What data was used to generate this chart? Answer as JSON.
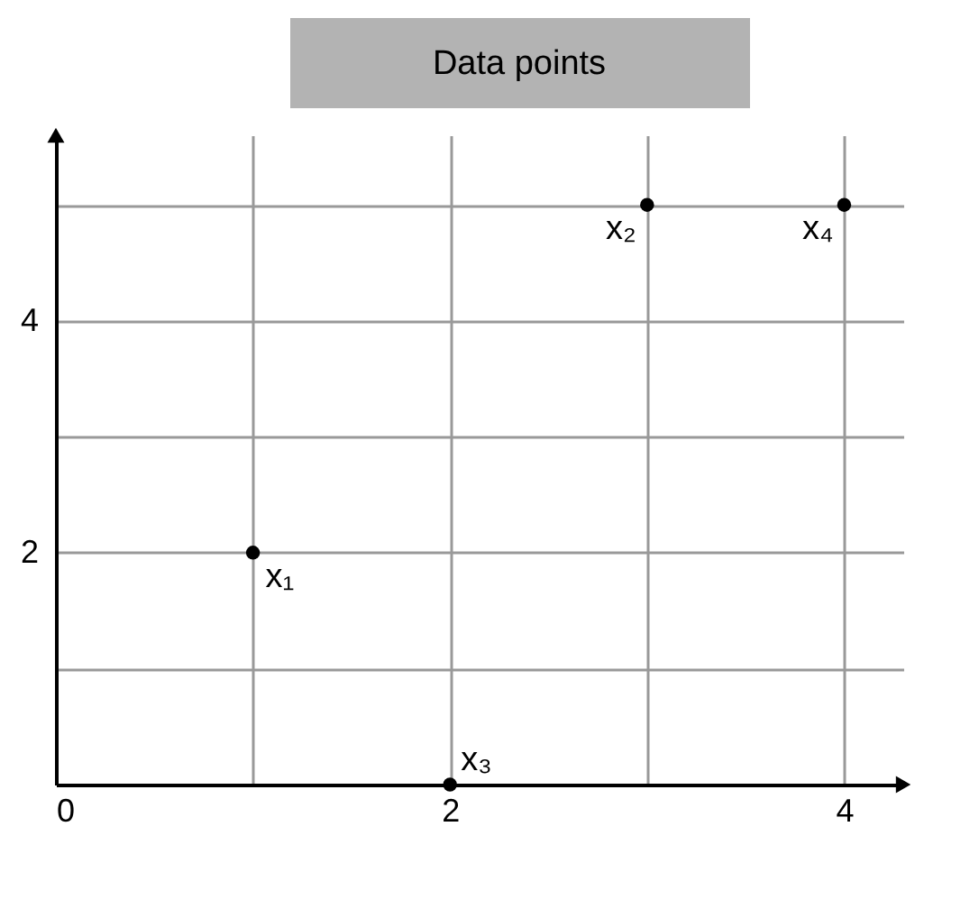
{
  "chart_data": {
    "type": "scatter",
    "title": "Data points",
    "x": [
      1,
      3,
      2,
      4
    ],
    "series": [
      {
        "color": "#000000",
        "values": [
          2,
          5,
          0,
          5
        ]
      }
    ],
    "annotations": [
      {
        "text": "x₁",
        "x": 1,
        "y": 2
      },
      {
        "text": "x₂",
        "x": 3,
        "y": 5
      },
      {
        "text": "x₃",
        "x": 2,
        "y": 0
      },
      {
        "text": "x₄",
        "x": 4,
        "y": 5
      }
    ],
    "xlim": [
      0,
      4.3
    ],
    "ylim": [
      0,
      5.6
    ],
    "xticks": [
      0,
      {
        "value": 1,
        "label": null
      },
      2,
      {
        "value": 3,
        "label": null
      },
      4
    ],
    "yticks": [
      {
        "value": 0,
        "label": null
      },
      {
        "value": 1,
        "label": null
      },
      2,
      {
        "value": 3,
        "label": null
      },
      4,
      {
        "value": 5,
        "label": null
      }
    ],
    "grid": true,
    "marker": "circle"
  }
}
